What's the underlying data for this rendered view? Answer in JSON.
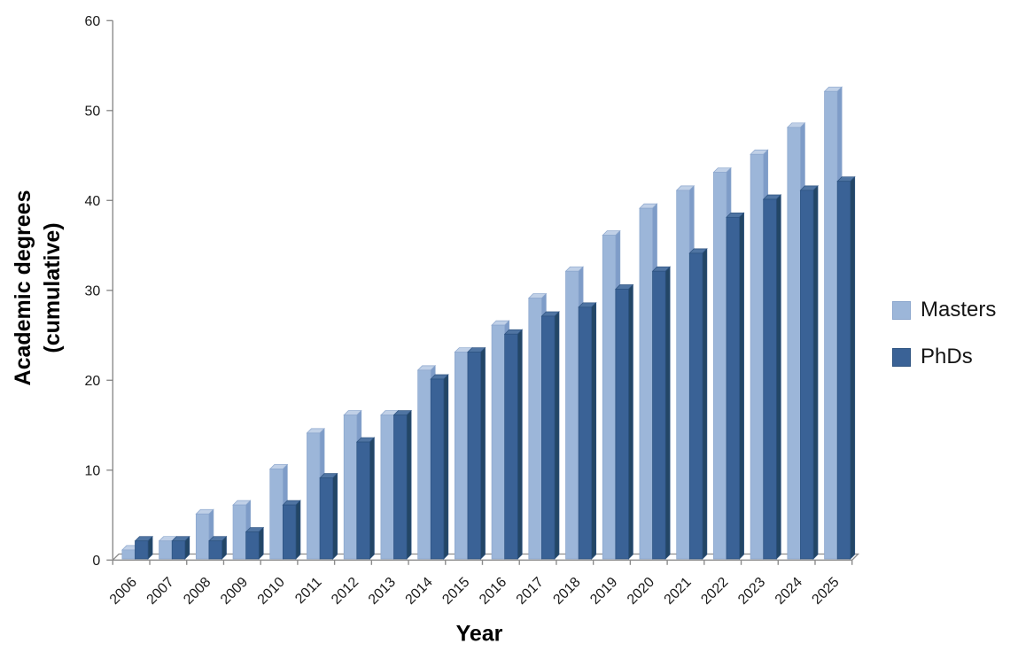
{
  "chart_data": {
    "type": "bar",
    "title": "",
    "categories": [
      "2006",
      "2007",
      "2008",
      "2009",
      "2010",
      "2011",
      "2012",
      "2013",
      "2014",
      "2015",
      "2016",
      "2017",
      "2018",
      "2019",
      "2020",
      "2021",
      "2022",
      "2023",
      "2024",
      "2025"
    ],
    "series": [
      {
        "name": "Masters",
        "color": "#9CB6D9",
        "top_color": "#C0D0E7",
        "side_color": "#7E9CC8",
        "edge_color": "#8BA6CD",
        "values": [
          1,
          2,
          5,
          6,
          10,
          14,
          16,
          16,
          21,
          23,
          26,
          29,
          32,
          36,
          39,
          41,
          43,
          45,
          48,
          52
        ]
      },
      {
        "name": "PhDs",
        "color": "#3A6296",
        "top_color": "#4F74A2",
        "side_color": "#234666",
        "edge_color": "#2C5280",
        "values": [
          2,
          2,
          2,
          3,
          6,
          9,
          13,
          16,
          20,
          23,
          25,
          27,
          28,
          30,
          32,
          34,
          38,
          40,
          41,
          42
        ]
      }
    ],
    "xlabel": "Year",
    "ylabel": "Academic degrees (cumulative)",
    "ylabel_lines": [
      "Academic degrees",
      "(cumulative)"
    ],
    "ylim": [
      0,
      60
    ],
    "yticks": [
      0,
      10,
      20,
      30,
      40,
      50,
      60
    ],
    "grid": false,
    "legend_position": "right",
    "axis_color": "#8C8C8C",
    "tick_text_color": "#1A1A1A"
  },
  "legend": {
    "items": [
      {
        "label": "Masters",
        "swatch": "masters-swatch"
      },
      {
        "label": "PhDs",
        "swatch": "phds-swatch"
      }
    ]
  }
}
